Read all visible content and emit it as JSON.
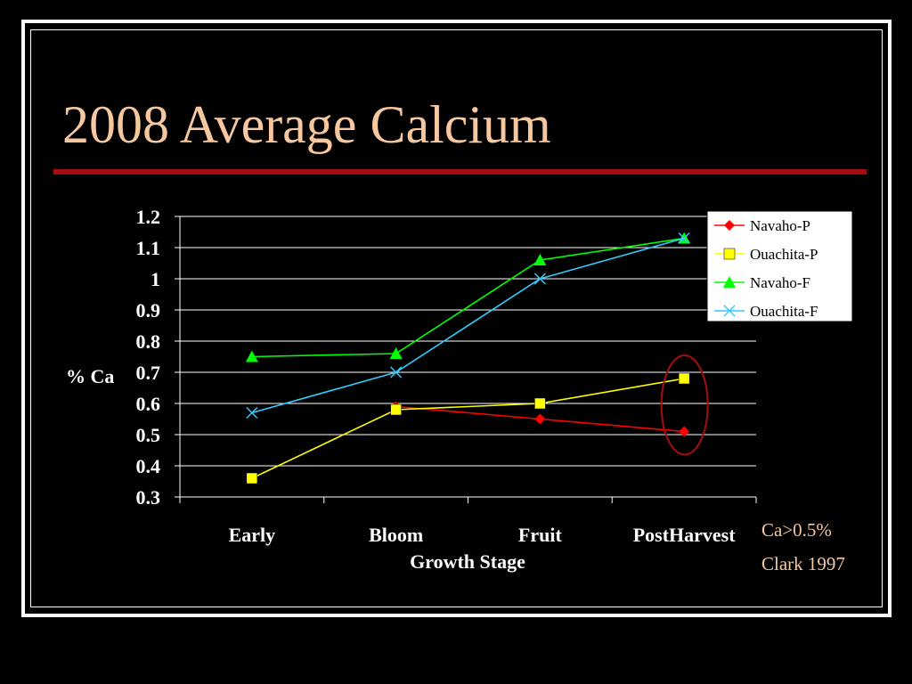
{
  "slide": {
    "title": "2008 Average Calcium",
    "notes": [
      "Ca>0.5%",
      "Clark 1997"
    ]
  },
  "colors": {
    "title_text": "#f7c8a0",
    "title_rule": "#a50e0e",
    "highlight_ellipse": "#a50e0e"
  },
  "chart_data": {
    "type": "line",
    "categories": [
      "Early",
      "Bloom",
      "Fruit",
      "PostHarvest"
    ],
    "xlabel": "Growth Stage",
    "ylabel": "% Ca",
    "ylim": [
      0.3,
      1.2
    ],
    "yticks": [
      "0.3",
      "0.4",
      "0.5",
      "0.6",
      "0.7",
      "0.8",
      "0.9",
      "1",
      "1.1",
      "1.2"
    ],
    "grid": "horizontal",
    "legend": "top-right",
    "series": [
      {
        "name": "Navaho-P",
        "color": "#ff0000",
        "marker": "diamond",
        "values": [
          null,
          0.59,
          0.55,
          0.51
        ]
      },
      {
        "name": "Ouachita-P",
        "color": "#ffff00",
        "marker": "square",
        "values": [
          0.36,
          0.58,
          0.6,
          0.68
        ]
      },
      {
        "name": "Navaho-F",
        "color": "#00ff00",
        "marker": "triangle",
        "values": [
          0.75,
          0.76,
          1.06,
          1.13
        ]
      },
      {
        "name": "Ouachita-F",
        "color": "#33ccff",
        "marker": "x",
        "values": [
          0.57,
          0.7,
          1.0,
          1.13
        ]
      }
    ],
    "annotation": {
      "type": "ellipse",
      "category": "PostHarvest",
      "around_values": [
        0.51,
        0.68
      ]
    }
  }
}
